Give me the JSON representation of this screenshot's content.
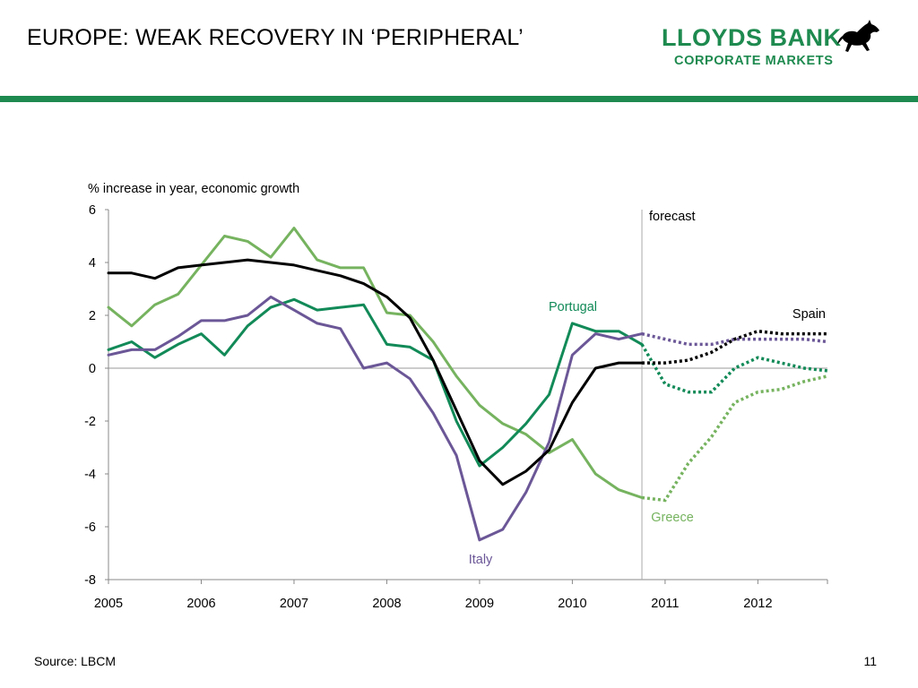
{
  "slide": {
    "title": "EUROPE: WEAK RECOVERY IN ‘PERIPHERAL’",
    "logo_line1": "LLOYDS BANK",
    "logo_line2": "CORPORATE MARKETS",
    "source": "Source: LBCM",
    "page_number": "11",
    "brand_color": "#1e8a4f"
  },
  "chart_data": {
    "type": "line",
    "ylabel": "% increase in year, economic growth",
    "ylim": [
      -8,
      6
    ],
    "yticks": [
      "6",
      "4",
      "2",
      "0",
      "-2",
      "-4",
      "-6",
      "-8"
    ],
    "xlim": [
      2005.0,
      2012.75
    ],
    "xticks": [
      "2005",
      "2006",
      "2007",
      "2008",
      "2009",
      "2010",
      "2011",
      "2012"
    ],
    "grid": false,
    "forecast_start": 2010.75,
    "forecast_label": "forecast",
    "x": [
      2005.0,
      2005.25,
      2005.5,
      2005.75,
      2006.0,
      2006.25,
      2006.5,
      2006.75,
      2007.0,
      2007.25,
      2007.5,
      2007.75,
      2008.0,
      2008.25,
      2008.5,
      2008.75,
      2009.0,
      2009.25,
      2009.5,
      2009.75,
      2010.0,
      2010.25,
      2010.5,
      2010.75,
      2011.0,
      2011.25,
      2011.5,
      2011.75,
      2012.0,
      2012.25,
      2012.5,
      2012.75
    ],
    "series": [
      {
        "name": "Greece",
        "color": "#76b35f",
        "values": [
          2.3,
          1.6,
          2.4,
          2.8,
          3.9,
          5.0,
          4.8,
          4.2,
          5.3,
          4.1,
          3.8,
          3.8,
          2.1,
          2.0,
          1.0,
          -0.3,
          -1.4,
          -2.1,
          -2.5,
          -3.2,
          -2.7,
          -4.0,
          -4.6,
          -4.9,
          -5.0,
          -3.6,
          -2.6,
          -1.3,
          -0.9,
          -0.8,
          -0.5,
          -0.3
        ]
      },
      {
        "name": "Portugal",
        "color": "#128a58",
        "values": [
          0.7,
          1.0,
          0.4,
          0.9,
          1.3,
          0.5,
          1.6,
          2.3,
          2.6,
          2.2,
          2.3,
          2.4,
          0.9,
          0.8,
          0.3,
          -2.0,
          -3.7,
          -3.0,
          -2.1,
          -1.0,
          1.7,
          1.4,
          1.4,
          0.9,
          -0.6,
          -0.9,
          -0.9,
          0.0,
          0.4,
          0.2,
          0.0,
          -0.1
        ]
      },
      {
        "name": "Italy",
        "color": "#6b5797",
        "values": [
          0.5,
          0.7,
          0.7,
          1.2,
          1.8,
          1.8,
          2.0,
          2.7,
          2.2,
          1.7,
          1.5,
          0.0,
          0.2,
          -0.4,
          -1.7,
          -3.3,
          -6.5,
          -6.1,
          -4.7,
          -2.8,
          0.5,
          1.3,
          1.1,
          1.3,
          1.1,
          0.9,
          0.9,
          1.1,
          1.1,
          1.1,
          1.1,
          1.0
        ]
      },
      {
        "name": "Spain",
        "color": "#000000",
        "values": [
          3.6,
          3.6,
          3.4,
          3.8,
          3.9,
          4.0,
          4.1,
          4.0,
          3.9,
          3.7,
          3.5,
          3.2,
          2.7,
          1.9,
          0.3,
          -1.6,
          -3.5,
          -4.4,
          -3.9,
          -3.1,
          -1.3,
          0.0,
          0.2,
          0.2,
          0.2,
          0.3,
          0.6,
          1.1,
          1.4,
          1.3,
          1.3,
          1.3
        ]
      }
    ]
  }
}
